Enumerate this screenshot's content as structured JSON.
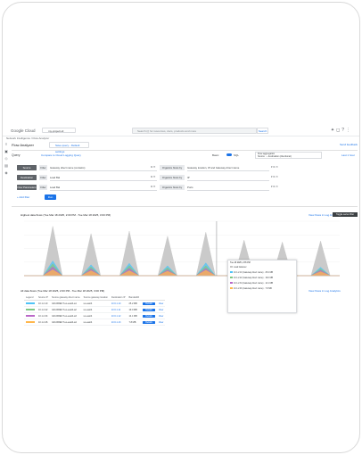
{
  "topbar": {
    "logo": "Google Cloud",
    "project": "my-project-id",
    "search_placeholder": "Search (/) for resources, docs, products and more",
    "search_button": "Search"
  },
  "breadcrumb": "Network Intelligence  /  Flow Analyzer",
  "page": {
    "title": "Flow Analyzer",
    "save_label": "Save query - Default settings",
    "send_feedback": "Send feedback"
  },
  "query": {
    "label": "Query",
    "compare_label": "Compare to Cloud Logging Query",
    "basic_label": "Basic",
    "sql_label": "SQL",
    "aggregation_label": "Flow aggregation",
    "aggregation_value": "Source → destination (directional)",
    "time_range": "Last 1 hour"
  },
  "filters": [
    {
      "chip": "Source",
      "op": "Filter",
      "value": "Gateway direct name (contains)",
      "group_op": "Organize flows by",
      "group_value": "Gateway location, IP and Gateway direct name"
    },
    {
      "chip": "Destination",
      "op": "Filter",
      "value": "Load Bal",
      "group_op": "Organize flows by",
      "group_value": "IP"
    },
    {
      "chip": "Flow Parameters",
      "op": "Filter",
      "value": "Load Bal",
      "group_op": "Organize flows by",
      "group_value": "Ports"
    }
  ],
  "actions": {
    "add_filter": "+ Add filter",
    "run": "Run"
  },
  "chart": {
    "title": "Highest data flows (Tue Mar 18 2025, 2:00 PM - Tue Mar 18 2025, 3:00 PM)",
    "link": "View flows in Log Analytics",
    "badge": "Toggle series filter"
  },
  "chart_data": {
    "type": "area",
    "series": [
      {
        "values": [
          0,
          0,
          0,
          100,
          0,
          0,
          0,
          85,
          0,
          0,
          0,
          90,
          0,
          0,
          0,
          80,
          0,
          0,
          0,
          88,
          0,
          0,
          0,
          72,
          0,
          0,
          0,
          68,
          0,
          0,
          0,
          70,
          0,
          0
        ]
      },
      {
        "values": [
          0,
          0,
          0,
          30,
          0,
          0,
          0,
          22,
          0,
          0,
          0,
          25,
          0,
          0,
          0,
          20,
          0,
          0,
          0,
          26,
          0,
          0,
          0,
          18,
          0,
          0,
          0,
          15,
          0,
          0,
          0,
          17,
          0,
          0
        ]
      },
      {
        "values": [
          0,
          0,
          0,
          24,
          0,
          0,
          0,
          18,
          0,
          0,
          0,
          20,
          0,
          0,
          0,
          16,
          0,
          0,
          0,
          20,
          0,
          0,
          0,
          14,
          0,
          0,
          0,
          12,
          0,
          0,
          0,
          14,
          0,
          0
        ]
      },
      {
        "values": [
          0,
          0,
          0,
          18,
          0,
          0,
          0,
          14,
          0,
          0,
          0,
          15,
          0,
          0,
          0,
          12,
          0,
          0,
          0,
          15,
          0,
          0,
          0,
          11,
          0,
          0,
          0,
          9,
          0,
          0,
          0,
          11,
          0,
          0
        ]
      },
      {
        "values": [
          0,
          0,
          0,
          12,
          0,
          0,
          0,
          10,
          0,
          0,
          0,
          10,
          0,
          0,
          0,
          9,
          0,
          0,
          0,
          11,
          0,
          0,
          0,
          8,
          0,
          0,
          0,
          7,
          0,
          0,
          0,
          8,
          0,
          0
        ]
      }
    ],
    "ylim": [
      0,
      110
    ],
    "colors": [
      "#c4c4c4",
      "#4fc3f7",
      "#81c784",
      "#ba68c8",
      "#ffb74d"
    ]
  },
  "tooltip": {
    "time": "Tue 18 2025, 2:35 PM",
    "rows": [
      {
        "color": "#c4c4c4",
        "text": "Load balancer"
      },
      {
        "color": "#4fc3f7",
        "text": "10.1.2.10 (Gateway direct name) · 25.2 MB"
      },
      {
        "color": "#81c784",
        "text": "10.1.2.22 (Gateway direct name) · 19.0 MB"
      },
      {
        "color": "#ba68c8",
        "text": "10.1.2.34 (Gateway direct name) · 14.1 MB"
      },
      {
        "color": "#ffb74d",
        "text": "10.1.2.46 (Gateway direct name) · 7.8 MB"
      }
    ]
  },
  "table": {
    "title": "All data flows (Tue Mar 18 2025, 2:00 PM - Tue Mar 18 2025, 3:00 PM)",
    "link": "View flows in Log Analytics",
    "columns": [
      "Legend",
      "Source IP",
      "Source gateway direct name",
      "Source gateway location",
      "Destination IP",
      "Bandwidth",
      "",
      ""
    ],
    "rows": [
      {
        "color": "#4fc3f7",
        "src": "10.1.2.10",
        "name": "GD-DIRECT-us-east4-a1",
        "loc": "us-east4",
        "dst": "10.6.1.10",
        "bw": "25.2 MB",
        "details": "Details",
        "view": "View"
      },
      {
        "color": "#81c784",
        "src": "10.1.2.22",
        "name": "GD-DIRECT-us-east4-a2",
        "loc": "us-east4",
        "dst": "10.6.1.11",
        "bw": "19.0 MB",
        "details": "Details",
        "view": "View"
      },
      {
        "color": "#ba68c8",
        "src": "10.1.2.34",
        "name": "GD-DIRECT-us-east4-a3",
        "loc": "us-east4",
        "dst": "10.6.1.12",
        "bw": "14.1 MB",
        "details": "Details",
        "view": "View"
      },
      {
        "color": "#ffb74d",
        "src": "10.1.2.46",
        "name": "GD-DIRECT-us-east4-a4",
        "loc": "us-east4",
        "dst": "10.6.1.13",
        "bw": "7.8 MB",
        "details": "Details",
        "view": "View"
      }
    ]
  }
}
